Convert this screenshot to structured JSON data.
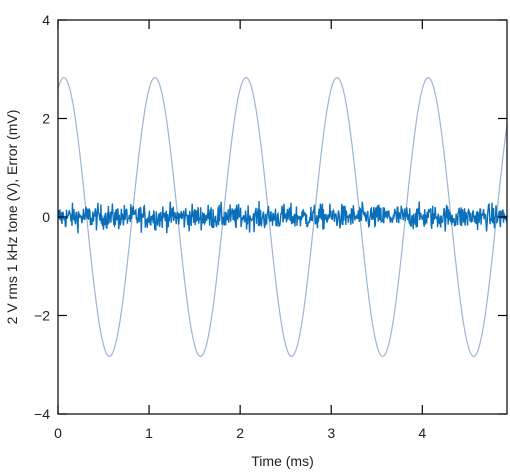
{
  "chart_data": {
    "type": "line",
    "xlabel": "Time (ms)",
    "ylabel": "2 V rms 1 kHz tone (V), Error (mV)",
    "xlim": [
      0,
      4.93
    ],
    "ylim": [
      -4,
      4
    ],
    "x_ticks": [
      0,
      1,
      2,
      3,
      4
    ],
    "y_ticks": [
      -4,
      -2,
      0,
      2,
      4
    ],
    "x_tick_labels": [
      "0",
      "1",
      "2",
      "3",
      "4"
    ],
    "y_tick_labels": [
      "−4",
      "−2",
      "0",
      "2",
      "4"
    ],
    "grid": false,
    "legend": "none",
    "series": [
      {
        "kind": "sine",
        "color": "#9db4d8",
        "amplitude": 2.83,
        "frequency_khz": 1.0,
        "peak_times_ms": [
          0.93,
          1.93,
          2.93,
          3.93,
          4.93
        ],
        "trough_times_ms": [
          0.43,
          1.43,
          2.43,
          3.43,
          4.43
        ],
        "value_at_0": 2.6
      },
      {
        "kind": "noise",
        "color": "#0a6fba",
        "mean": 0.0,
        "approx_range": [
          -0.4,
          0.4
        ]
      }
    ]
  }
}
